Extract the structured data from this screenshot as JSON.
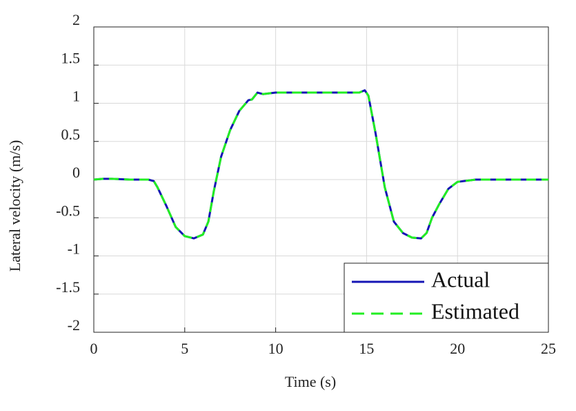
{
  "chart_data": {
    "type": "line",
    "xlabel": "Time (s)",
    "ylabel": "Lateral velocity (m/s)",
    "x": [
      0,
      0.5,
      1,
      2,
      3,
      3.3,
      3.5,
      4,
      4.5,
      5,
      5.5,
      6,
      6.3,
      6.6,
      7,
      7.5,
      8,
      8.5,
      8.7,
      9,
      9.3,
      10,
      12,
      14,
      14.6,
      14.9,
      15.1,
      15.5,
      16,
      16.5,
      17,
      17.5,
      18,
      18.3,
      18.6,
      19,
      19.5,
      20,
      21,
      25
    ],
    "series": [
      {
        "name": "Actual",
        "color": "#1515b5",
        "dashed": false,
        "values": [
          0,
          0.01,
          0.01,
          0,
          0,
          -0.02,
          -0.1,
          -0.35,
          -0.62,
          -0.74,
          -0.77,
          -0.72,
          -0.55,
          -0.15,
          0.3,
          0.65,
          0.9,
          1.04,
          1.05,
          1.14,
          1.12,
          1.14,
          1.14,
          1.14,
          1.14,
          1.17,
          1.1,
          0.6,
          -0.1,
          -0.55,
          -0.7,
          -0.76,
          -0.77,
          -0.7,
          -0.5,
          -0.32,
          -0.12,
          -0.03,
          0,
          0
        ]
      },
      {
        "name": "Estimated",
        "color": "#22ee22",
        "dashed": true,
        "values": [
          0,
          0.01,
          0.01,
          0,
          0,
          -0.02,
          -0.1,
          -0.35,
          -0.62,
          -0.74,
          -0.77,
          -0.72,
          -0.55,
          -0.15,
          0.3,
          0.65,
          0.9,
          1.04,
          1.05,
          1.14,
          1.12,
          1.14,
          1.14,
          1.14,
          1.14,
          1.17,
          1.1,
          0.6,
          -0.1,
          -0.55,
          -0.7,
          -0.76,
          -0.77,
          -0.7,
          -0.5,
          -0.32,
          -0.12,
          -0.03,
          0,
          0
        ]
      }
    ],
    "xlim": [
      0,
      25
    ],
    "xticks": [
      0,
      5,
      10,
      15,
      20,
      25
    ],
    "ylim": [
      -2,
      2
    ],
    "yticks": [
      -2,
      -1.5,
      -1,
      -0.5,
      0,
      0.5,
      1,
      1.5,
      2
    ],
    "grid": true,
    "legend": "lower right"
  }
}
